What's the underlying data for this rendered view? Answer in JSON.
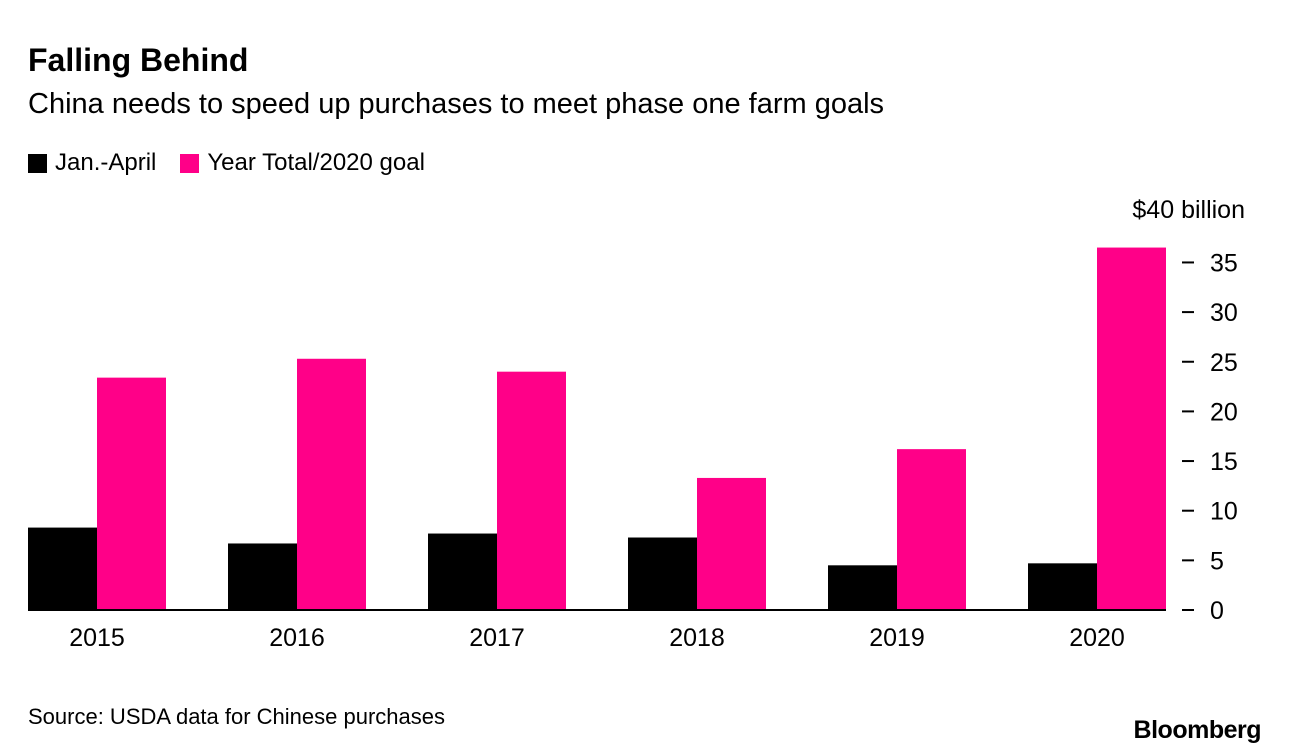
{
  "chart_data": {
    "type": "bar",
    "title": "Falling Behind",
    "subtitle": "China needs to speed up purchases to meet phase one farm goals",
    "categories": [
      "2015",
      "2016",
      "2017",
      "2018",
      "2019",
      "2020"
    ],
    "series": [
      {
        "name": "Jan.-April",
        "color": "#000000",
        "values": [
          8.3,
          6.7,
          7.7,
          7.3,
          4.5,
          4.7
        ]
      },
      {
        "name": "Year Total/2020 goal",
        "color": "#ff0088",
        "values": [
          23.4,
          25.3,
          24.0,
          13.3,
          16.2,
          36.5
        ]
      }
    ],
    "yaxis": {
      "position": "right",
      "unit_label": "$40 billion",
      "ylim": [
        0,
        40
      ],
      "ticks": [
        0,
        5,
        10,
        15,
        20,
        25,
        30,
        35
      ],
      "tick_labels": [
        "0",
        "5",
        "10",
        "15",
        "20",
        "25",
        "30",
        "35"
      ]
    },
    "xlabel": "",
    "ylabel": "",
    "grid": false,
    "legend_position": "top-left"
  },
  "footer": {
    "source": "Source: USDA data for Chinese purchases",
    "brand": "Bloomberg"
  }
}
